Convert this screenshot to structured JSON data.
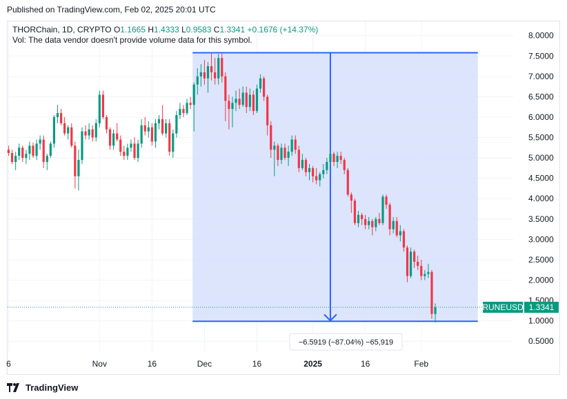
{
  "header": {
    "published": "Published on TradingView.com, Feb 02, 2025 20:01 UTC"
  },
  "legend": {
    "symbol": "THORChain, 1D, CRYPTO",
    "o_label": "O",
    "o_value": "1.1665",
    "h_label": "H",
    "h_value": "1.4333",
    "l_label": "L",
    "l_value": "0.9583",
    "c_label": "C",
    "c_value": "1.3341",
    "change": "+0.1676 (+14.37%)",
    "volume_note": "Vol: The data vendor doesn't provide volume data for this symbol."
  },
  "price_tag": {
    "ticker": "RUNEUSD",
    "value": "1.3341",
    "color": "#089981"
  },
  "measure": {
    "label": "−6.5919 (−87.04%) −65,919",
    "fill_color": "#d6e0fb",
    "line_color": "#2962ff"
  },
  "footer": {
    "brand": "TradingView"
  },
  "colors": {
    "up": "#089981",
    "down": "#f23645",
    "grid": "#f0f3fa"
  },
  "chart_data": {
    "type": "candlestick",
    "y_ticks": [
      "8.0000",
      "7.5000",
      "7.0000",
      "6.5000",
      "6.0000",
      "5.5000",
      "5.0000",
      "4.5000",
      "4.0000",
      "3.5000",
      "3.0000",
      "2.5000",
      "2.0000",
      "1.5000",
      "1.0000",
      "0.5000"
    ],
    "ylim": [
      0.25,
      8.35
    ],
    "x_ticks": [
      {
        "label": "6",
        "day": 0,
        "bold": false
      },
      {
        "label": "Nov",
        "day": 26,
        "bold": false
      },
      {
        "label": "16",
        "day": 41,
        "bold": false
      },
      {
        "label": "Dec",
        "day": 56,
        "bold": false
      },
      {
        "label": "16",
        "day": 71,
        "bold": false
      },
      {
        "label": "2025",
        "day": 87,
        "bold": true
      },
      {
        "label": "16",
        "day": 102,
        "bold": false
      },
      {
        "label": "Feb",
        "day": 118,
        "bold": false
      }
    ],
    "measure_range": {
      "start_day": 53,
      "end_day": 118,
      "arrow_day": 92,
      "high": 7.58,
      "low": 0.99
    },
    "last_price": 1.3341,
    "candles": [
      [
        5.2,
        5.3,
        5.05,
        5.12
      ],
      [
        5.12,
        5.2,
        4.85,
        4.9
      ],
      [
        4.9,
        5.15,
        4.7,
        5.05
      ],
      [
        5.05,
        5.35,
        4.95,
        5.25
      ],
      [
        5.25,
        5.3,
        4.9,
        5.0
      ],
      [
        5.0,
        5.2,
        4.85,
        5.1
      ],
      [
        5.1,
        5.4,
        4.95,
        5.3
      ],
      [
        5.3,
        5.38,
        5.0,
        5.05
      ],
      [
        5.05,
        5.45,
        4.95,
        5.35
      ],
      [
        5.35,
        5.55,
        5.2,
        5.45
      ],
      [
        5.45,
        5.55,
        4.75,
        4.9
      ],
      [
        4.9,
        5.1,
        4.7,
        5.05
      ],
      [
        5.05,
        5.4,
        5.0,
        5.35
      ],
      [
        5.35,
        6.05,
        5.25,
        6.0
      ],
      [
        6.0,
        6.3,
        5.85,
        6.1
      ],
      [
        6.1,
        6.2,
        5.8,
        5.85
      ],
      [
        5.85,
        6.0,
        5.55,
        5.6
      ],
      [
        5.6,
        5.8,
        5.45,
        5.75
      ],
      [
        5.75,
        5.85,
        5.25,
        5.3
      ],
      [
        5.3,
        5.4,
        4.25,
        4.55
      ],
      [
        4.55,
        5.2,
        4.2,
        4.95
      ],
      [
        4.95,
        5.75,
        4.85,
        5.65
      ],
      [
        5.65,
        5.8,
        5.45,
        5.55
      ],
      [
        5.55,
        5.85,
        5.45,
        5.7
      ],
      [
        5.7,
        5.8,
        5.4,
        5.5
      ],
      [
        5.5,
        5.95,
        5.4,
        5.85
      ],
      [
        5.85,
        6.65,
        5.75,
        6.55
      ],
      [
        6.55,
        6.65,
        5.95,
        6.0
      ],
      [
        6.0,
        6.05,
        5.6,
        5.7
      ],
      [
        5.7,
        5.75,
        5.2,
        5.3
      ],
      [
        5.3,
        5.7,
        5.2,
        5.6
      ],
      [
        5.6,
        5.85,
        5.4,
        5.45
      ],
      [
        5.45,
        5.55,
        5.05,
        5.15
      ],
      [
        5.15,
        5.3,
        4.95,
        5.05
      ],
      [
        5.05,
        5.35,
        4.95,
        5.25
      ],
      [
        5.25,
        5.45,
        5.15,
        5.35
      ],
      [
        5.35,
        5.5,
        4.95,
        5.0
      ],
      [
        5.0,
        5.45,
        4.9,
        5.35
      ],
      [
        5.35,
        5.95,
        5.25,
        5.8
      ],
      [
        5.8,
        6.0,
        5.55,
        5.65
      ],
      [
        5.65,
        5.9,
        5.5,
        5.75
      ],
      [
        5.75,
        5.85,
        5.3,
        5.4
      ],
      [
        5.4,
        5.95,
        5.25,
        5.85
      ],
      [
        5.85,
        6.05,
        5.7,
        5.95
      ],
      [
        5.95,
        6.3,
        5.55,
        5.6
      ],
      [
        5.6,
        5.95,
        5.5,
        5.85
      ],
      [
        5.85,
        5.95,
        5.05,
        5.15
      ],
      [
        5.15,
        5.7,
        5.0,
        5.6
      ],
      [
        5.6,
        6.15,
        5.5,
        6.05
      ],
      [
        6.05,
        6.35,
        5.95,
        6.2
      ],
      [
        6.2,
        6.3,
        6.0,
        6.1
      ],
      [
        6.1,
        6.45,
        6.05,
        6.35
      ],
      [
        6.35,
        6.5,
        6.2,
        6.3
      ],
      [
        6.3,
        6.85,
        5.65,
        6.8
      ],
      [
        6.8,
        7.2,
        6.55,
        7.0
      ],
      [
        7.0,
        7.3,
        6.75,
        7.1
      ],
      [
        7.1,
        7.4,
        6.8,
        6.95
      ],
      [
        6.95,
        7.35,
        6.6,
        7.25
      ],
      [
        7.25,
        7.6,
        6.9,
        7.1
      ],
      [
        7.1,
        7.45,
        6.8,
        6.95
      ],
      [
        6.95,
        7.55,
        6.8,
        7.45
      ],
      [
        7.45,
        7.58,
        6.85,
        7.0
      ],
      [
        7.0,
        7.1,
        5.9,
        6.4
      ],
      [
        6.4,
        6.55,
        5.7,
        6.2
      ],
      [
        6.2,
        6.5,
        5.75,
        6.35
      ],
      [
        6.35,
        6.65,
        6.15,
        6.45
      ],
      [
        6.45,
        6.7,
        6.2,
        6.3
      ],
      [
        6.3,
        6.75,
        6.25,
        6.6
      ],
      [
        6.6,
        6.75,
        6.1,
        6.25
      ],
      [
        6.25,
        6.7,
        6.15,
        6.55
      ],
      [
        6.55,
        6.65,
        6.05,
        6.15
      ],
      [
        6.15,
        6.8,
        6.1,
        6.7
      ],
      [
        6.7,
        7.05,
        6.6,
        6.95
      ],
      [
        6.95,
        7.0,
        6.4,
        6.5
      ],
      [
        6.5,
        6.55,
        5.55,
        5.8
      ],
      [
        5.8,
        5.9,
        5.0,
        5.2
      ],
      [
        5.2,
        5.4,
        4.55,
        5.3
      ],
      [
        5.3,
        5.35,
        4.8,
        4.95
      ],
      [
        4.95,
        5.35,
        4.85,
        5.25
      ],
      [
        5.25,
        5.35,
        4.95,
        5.0
      ],
      [
        5.0,
        5.3,
        4.8,
        5.15
      ],
      [
        5.15,
        5.55,
        5.05,
        5.45
      ],
      [
        5.45,
        5.55,
        5.1,
        5.2
      ],
      [
        5.2,
        5.3,
        4.65,
        4.75
      ],
      [
        4.75,
        5.1,
        4.7,
        4.95
      ],
      [
        4.95,
        5.0,
        4.55,
        4.65
      ],
      [
        4.65,
        4.85,
        4.45,
        4.75
      ],
      [
        4.75,
        4.8,
        4.4,
        4.55
      ],
      [
        4.55,
        4.75,
        4.35,
        4.45
      ],
      [
        4.45,
        4.65,
        4.3,
        4.6
      ],
      [
        4.6,
        4.85,
        4.5,
        4.7
      ],
      [
        4.7,
        5.0,
        4.6,
        4.9
      ],
      [
        4.9,
        5.15,
        4.8,
        5.1
      ],
      [
        5.1,
        5.15,
        4.8,
        4.9
      ],
      [
        4.9,
        5.15,
        4.75,
        5.05
      ],
      [
        5.05,
        5.15,
        4.85,
        4.95
      ],
      [
        4.95,
        5.0,
        4.6,
        4.7
      ],
      [
        4.7,
        4.75,
        4.05,
        4.1
      ],
      [
        4.1,
        4.15,
        3.65,
        3.95
      ],
      [
        3.95,
        4.0,
        3.35,
        3.4
      ],
      [
        3.4,
        3.7,
        3.3,
        3.6
      ],
      [
        3.6,
        3.65,
        3.35,
        3.5
      ],
      [
        3.5,
        3.6,
        3.25,
        3.35
      ],
      [
        3.35,
        3.55,
        3.25,
        3.45
      ],
      [
        3.45,
        3.5,
        3.1,
        3.3
      ],
      [
        3.3,
        3.55,
        3.2,
        3.5
      ],
      [
        3.5,
        3.65,
        3.35,
        3.4
      ],
      [
        3.4,
        4.1,
        3.35,
        4.05
      ],
      [
        4.05,
        4.1,
        3.75,
        3.85
      ],
      [
        3.85,
        3.9,
        3.1,
        3.25
      ],
      [
        3.25,
        3.55,
        3.15,
        3.45
      ],
      [
        3.45,
        3.55,
        3.05,
        3.1
      ],
      [
        3.1,
        3.35,
        2.95,
        3.2
      ],
      [
        3.2,
        3.25,
        2.7,
        2.8
      ],
      [
        2.8,
        2.85,
        1.95,
        2.1
      ],
      [
        2.1,
        2.8,
        2.05,
        2.7
      ],
      [
        2.7,
        2.75,
        2.3,
        2.45
      ],
      [
        2.45,
        2.6,
        2.25,
        2.35
      ],
      [
        2.35,
        2.5,
        2.0,
        2.1
      ],
      [
        2.1,
        2.25,
        2.0,
        2.15
      ],
      [
        2.15,
        2.4,
        2.05,
        2.2
      ],
      [
        2.2,
        2.25,
        1.05,
        1.17
      ],
      [
        1.17,
        1.43,
        0.96,
        1.33
      ]
    ]
  }
}
